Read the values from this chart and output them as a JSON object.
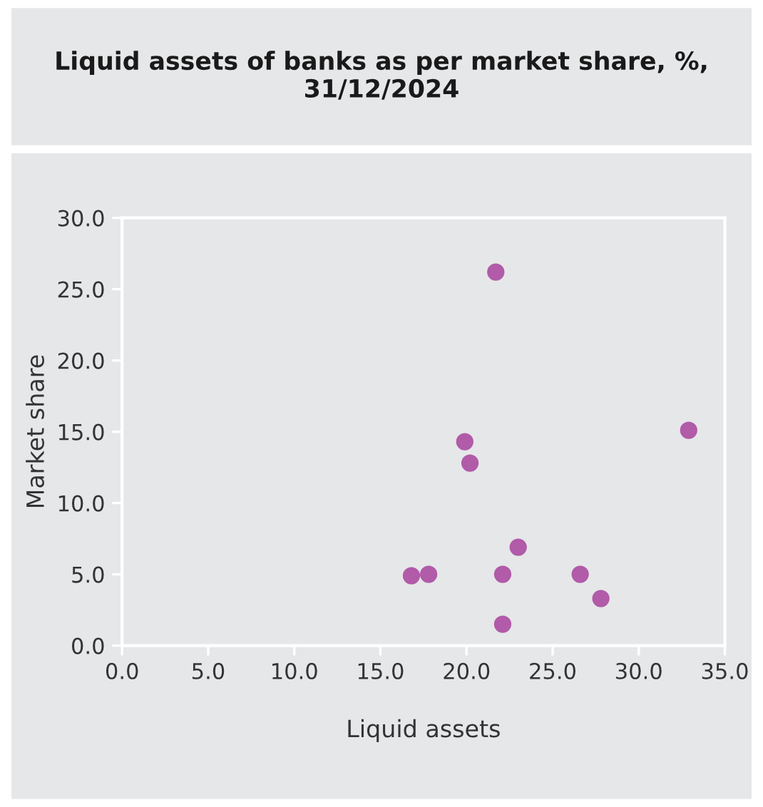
{
  "chart_data": {
    "type": "scatter",
    "title": "Liquid assets of banks as per market share, %,\n31/12/2024",
    "xlabel": "Liquid assets",
    "ylabel": "Market share",
    "x": [
      21.7,
      32.9,
      19.9,
      20.2,
      23.0,
      16.8,
      17.8,
      22.1,
      26.6,
      27.8,
      22.1
    ],
    "series": [
      {
        "color": "#b15ba9",
        "values": [
          26.2,
          15.1,
          14.3,
          12.8,
          6.9,
          4.9,
          5.0,
          5.0,
          5.0,
          3.3,
          1.5
        ]
      }
    ],
    "xlim": [
      0,
      35
    ],
    "xticks": [
      {
        "value": 0,
        "label": "0.0"
      },
      {
        "value": 5,
        "label": "5.0"
      },
      {
        "value": 10,
        "label": "10.0"
      },
      {
        "value": 15,
        "label": "15.0"
      },
      {
        "value": 20,
        "label": "20.0"
      },
      {
        "value": 25,
        "label": "25.0"
      },
      {
        "value": 30,
        "label": "30.0"
      },
      {
        "value": 35,
        "label": "35.0"
      }
    ],
    "ylim": [
      0,
      30
    ],
    "yticks": [
      {
        "value": 0,
        "label": "0.0"
      },
      {
        "value": 5,
        "label": "5.0"
      },
      {
        "value": 10,
        "label": "10.0"
      },
      {
        "value": 15,
        "label": "15.0"
      },
      {
        "value": 20,
        "label": "20.0"
      },
      {
        "value": 25,
        "label": "25.0"
      },
      {
        "value": 30,
        "label": "30.0"
      }
    ],
    "marker": "circle",
    "grid": false
  }
}
